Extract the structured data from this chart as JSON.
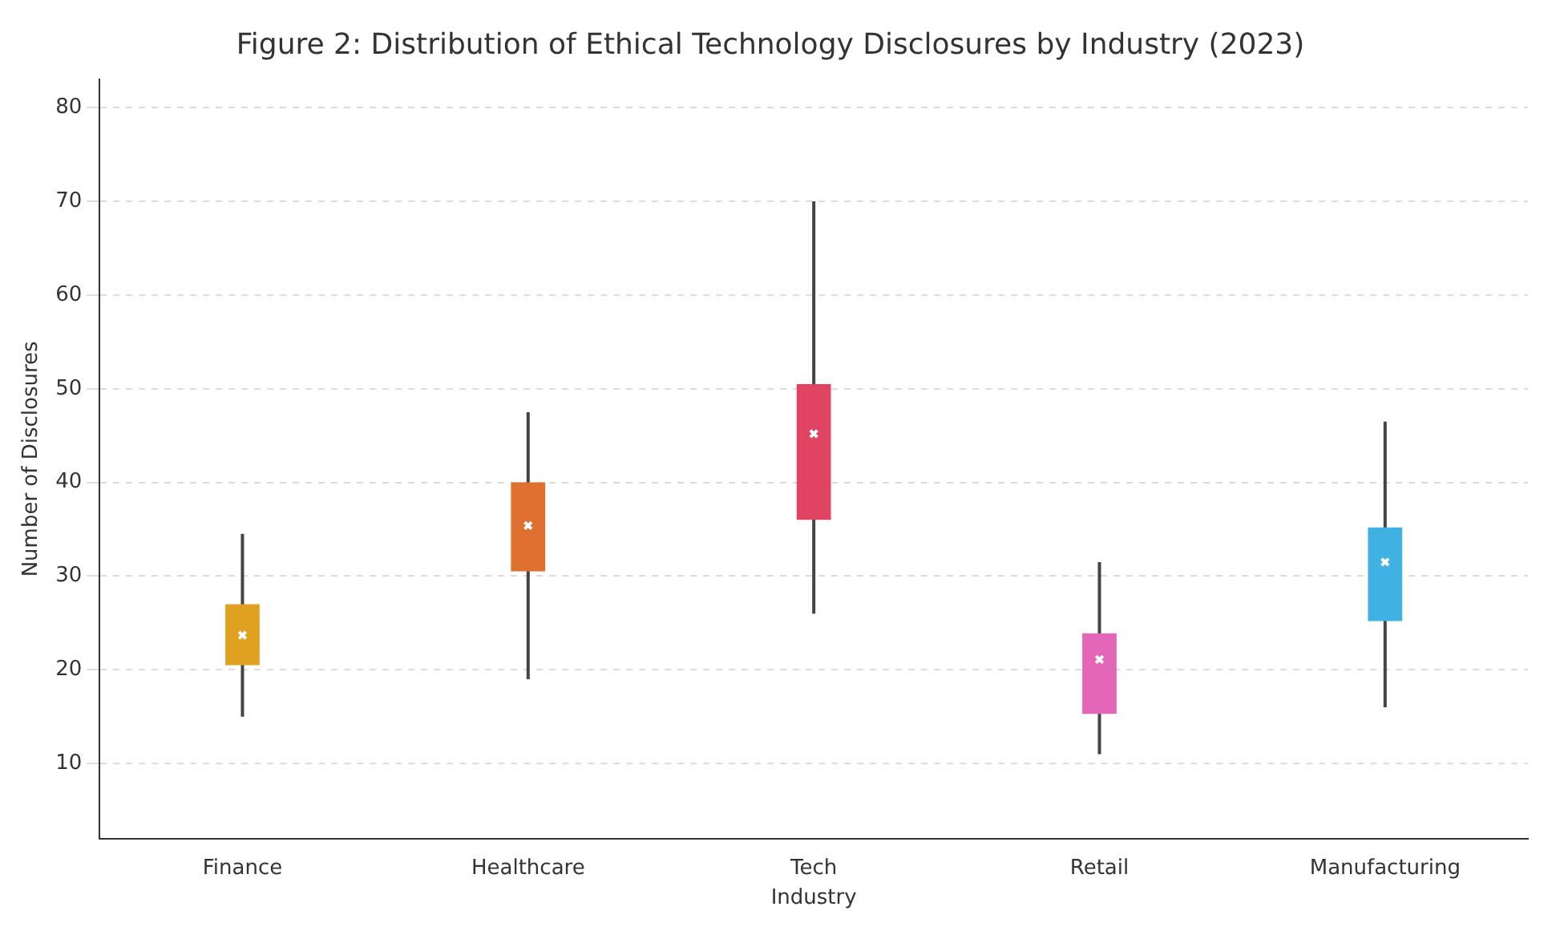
{
  "chart_data": {
    "type": "box",
    "title": "Figure 2: Distribution of Ethical Technology Disclosures by Industry (2023)",
    "xlabel": "Industry",
    "ylabel": "Number of Disclosures",
    "categories": [
      "Finance",
      "Healthcare",
      "Tech",
      "Retail",
      "Manufacturing"
    ],
    "colors": [
      "#e0a020",
      "#e07030",
      "#e04462",
      "#e466b8",
      "#3fb1e3"
    ],
    "boxes": [
      {
        "low": 15,
        "q1": 20.5,
        "median": 23.7,
        "q3": 27,
        "high": 34.5
      },
      {
        "low": 19,
        "q1": 30.5,
        "median": 35.4,
        "q3": 40,
        "high": 47.5
      },
      {
        "low": 26,
        "q1": 36,
        "median": 45.2,
        "q3": 50.5,
        "high": 70
      },
      {
        "low": 11,
        "q1": 15.3,
        "median": 21.1,
        "q3": 23.9,
        "high": 31.5
      },
      {
        "low": 16,
        "q1": 25.2,
        "median": 31.5,
        "q3": 35.2,
        "high": 46.5
      }
    ],
    "ylim": [
      2,
      83
    ],
    "yticks": [
      10,
      20,
      30,
      40,
      50,
      60,
      70,
      80
    ],
    "grid": "y",
    "legend": false
  }
}
